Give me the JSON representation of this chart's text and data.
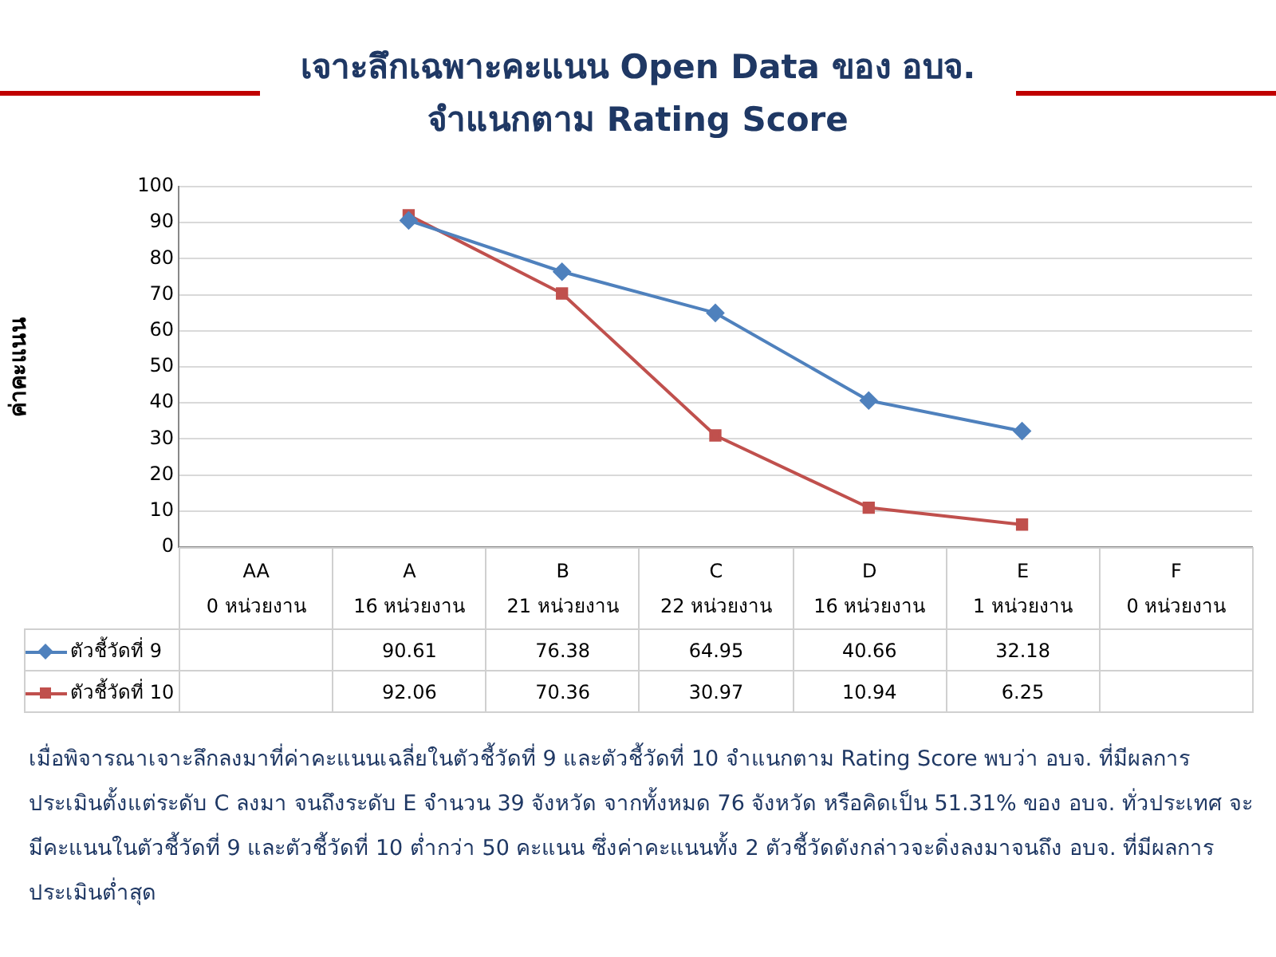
{
  "chart_data": {
    "type": "line",
    "title": "เจาะลึกเฉพาะคะแนน Open Data ของ อบจ.\nจำแนกตาม Rating Score",
    "ylabel": "ค่าคะแนน",
    "categories": [
      "AA\n0 หน่วยงาน",
      "A\n16 หน่วยงาน",
      "B\n21 หน่วยงาน",
      "C\n22  หน่วยงาน",
      "D\n16 หน่วยงาน",
      "E\n1  หน่วยงาน",
      "F\n0  หน่วยงาน"
    ],
    "series": [
      {
        "name": "ตัวชี้วัดที่ 9",
        "color": "#4f81bd",
        "marker": "diamond",
        "values": [
          null,
          90.61,
          76.38,
          64.95,
          40.66,
          32.18,
          null
        ]
      },
      {
        "name": "ตัวชี้วัดที่ 10",
        "color": "#c0504d",
        "marker": "square",
        "values": [
          null,
          92.06,
          70.36,
          30.97,
          10.94,
          6.25,
          null
        ]
      }
    ],
    "ylim": [
      0,
      100
    ],
    "yticks": [
      0,
      10,
      20,
      30,
      40,
      50,
      60,
      70,
      80,
      90,
      100
    ],
    "grid": "y",
    "legend": "bottom left",
    "data_labels": true,
    "annotations": [
      "เมื่อพิจารณาเจาะลึกลงมาที่ค่าคะแนนเฉลี่ยในตัวชี้วัดที่ 9 และตัวชี้วัดที่ 10 จำแนกตาม Rating Score พบว่า อบจ. ที่มีผลการประเมินตั้งแต่ระดับ C ลงมา จนถึงระดับ E จำนวน 39 จังหวัด จากทั้งหมด 76 จังหวัด หรือคิดเป็น 51.31% ของ อบจ. ทั่วประเทศ จะมีคะแนนในตัวชี้วัดที่ 9 และตัวชี้วัดที่ 10 ต่ำกว่า 50 คะแนน ซึ่งค่าคะแนนทั้ง 2 ตัวชี้วัดดังกล่าวจะดิ่งลงมาจนถึง อบจ. ที่มีผลการประเมินต่ำสุด"
    ]
  }
}
